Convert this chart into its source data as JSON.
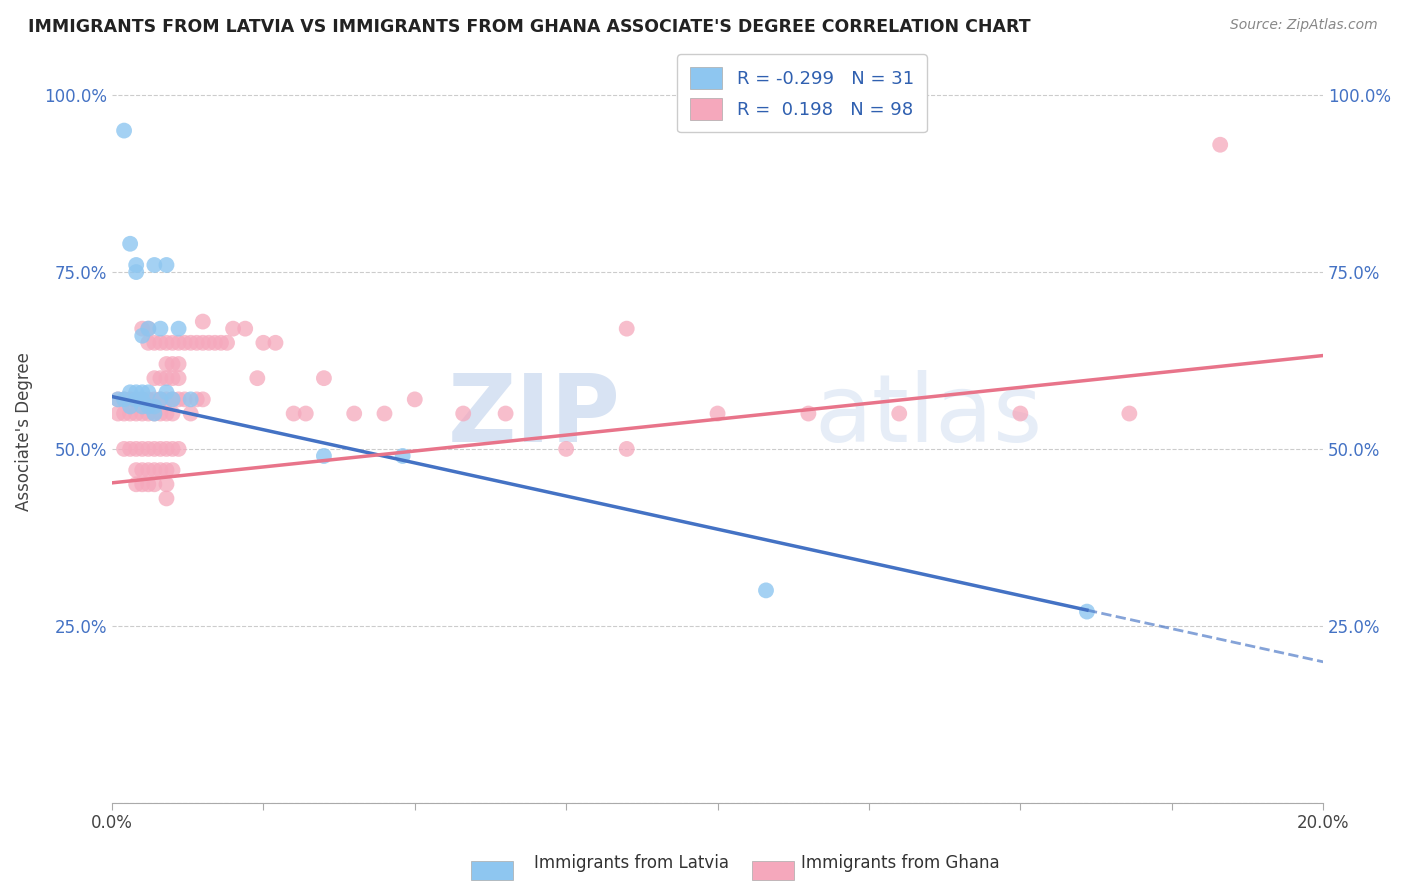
{
  "title": "IMMIGRANTS FROM LATVIA VS IMMIGRANTS FROM GHANA ASSOCIATE'S DEGREE CORRELATION CHART",
  "source_text": "Source: ZipAtlas.com",
  "ylabel": "Associate's Degree",
  "xlim": [
    0.0,
    0.2
  ],
  "ylim": [
    0.0,
    1.05
  ],
  "legend_r_latvia": "-0.299",
  "legend_n_latvia": "31",
  "legend_r_ghana": "0.198",
  "legend_n_ghana": "98",
  "legend_label_latvia": "Immigrants from Latvia",
  "legend_label_ghana": "Immigrants from Ghana",
  "color_latvia": "#8EC6F0",
  "color_ghana": "#F5A8BC",
  "trendline_color_latvia": "#4472C4",
  "trendline_color_ghana": "#E8748A",
  "watermark_color": "#D0DCF0",
  "background_color": "#FFFFFF",
  "latvia_x": [
    0.001,
    0.002,
    0.002,
    0.003,
    0.003,
    0.003,
    0.004,
    0.004,
    0.004,
    0.004,
    0.005,
    0.005,
    0.005,
    0.005,
    0.006,
    0.006,
    0.006,
    0.007,
    0.007,
    0.007,
    0.008,
    0.008,
    0.009,
    0.009,
    0.01,
    0.011,
    0.013,
    0.035,
    0.048,
    0.108,
    0.161
  ],
  "latvia_y": [
    0.57,
    0.95,
    0.57,
    0.79,
    0.58,
    0.56,
    0.75,
    0.76,
    0.58,
    0.57,
    0.66,
    0.58,
    0.57,
    0.56,
    0.67,
    0.58,
    0.56,
    0.56,
    0.55,
    0.76,
    0.67,
    0.57,
    0.76,
    0.58,
    0.57,
    0.67,
    0.57,
    0.49,
    0.49,
    0.3,
    0.27
  ],
  "ghana_x": [
    0.001,
    0.001,
    0.002,
    0.002,
    0.002,
    0.003,
    0.003,
    0.003,
    0.003,
    0.004,
    0.004,
    0.004,
    0.004,
    0.004,
    0.004,
    0.005,
    0.005,
    0.005,
    0.005,
    0.005,
    0.005,
    0.005,
    0.006,
    0.006,
    0.006,
    0.006,
    0.006,
    0.006,
    0.006,
    0.007,
    0.007,
    0.007,
    0.007,
    0.007,
    0.007,
    0.007,
    0.008,
    0.008,
    0.008,
    0.008,
    0.008,
    0.008,
    0.009,
    0.009,
    0.009,
    0.009,
    0.009,
    0.009,
    0.009,
    0.009,
    0.009,
    0.01,
    0.01,
    0.01,
    0.01,
    0.01,
    0.01,
    0.01,
    0.011,
    0.011,
    0.011,
    0.011,
    0.011,
    0.012,
    0.012,
    0.013,
    0.013,
    0.014,
    0.014,
    0.015,
    0.015,
    0.016,
    0.017,
    0.018,
    0.019,
    0.02,
    0.022,
    0.024,
    0.025,
    0.027,
    0.03,
    0.032,
    0.035,
    0.04,
    0.045,
    0.05,
    0.058,
    0.065,
    0.075,
    0.085,
    0.1,
    0.115,
    0.13,
    0.15,
    0.168,
    0.183,
    0.015,
    0.085
  ],
  "ghana_y": [
    0.57,
    0.55,
    0.57,
    0.55,
    0.5,
    0.57,
    0.57,
    0.55,
    0.5,
    0.57,
    0.55,
    0.57,
    0.5,
    0.47,
    0.45,
    0.67,
    0.57,
    0.57,
    0.55,
    0.5,
    0.47,
    0.45,
    0.67,
    0.65,
    0.57,
    0.55,
    0.5,
    0.47,
    0.45,
    0.65,
    0.6,
    0.57,
    0.55,
    0.5,
    0.47,
    0.45,
    0.65,
    0.6,
    0.57,
    0.55,
    0.5,
    0.47,
    0.65,
    0.62,
    0.6,
    0.57,
    0.55,
    0.5,
    0.47,
    0.45,
    0.43,
    0.65,
    0.62,
    0.6,
    0.57,
    0.55,
    0.5,
    0.47,
    0.65,
    0.62,
    0.6,
    0.57,
    0.5,
    0.65,
    0.57,
    0.65,
    0.55,
    0.65,
    0.57,
    0.65,
    0.57,
    0.65,
    0.65,
    0.65,
    0.65,
    0.67,
    0.67,
    0.6,
    0.65,
    0.65,
    0.55,
    0.55,
    0.6,
    0.55,
    0.55,
    0.57,
    0.55,
    0.55,
    0.5,
    0.5,
    0.55,
    0.55,
    0.55,
    0.55,
    0.55,
    0.93,
    0.68,
    0.67
  ],
  "trendline_latvia_x0": 0.0,
  "trendline_latvia_x_solid_end": 0.161,
  "trendline_latvia_x_dash_end": 0.2,
  "trendline_latvia_y0": 0.574,
  "trendline_latvia_slope": -1.875,
  "trendline_ghana_x0": 0.0,
  "trendline_ghana_x_end": 0.2,
  "trendline_ghana_y0": 0.452,
  "trendline_ghana_slope": 0.9
}
